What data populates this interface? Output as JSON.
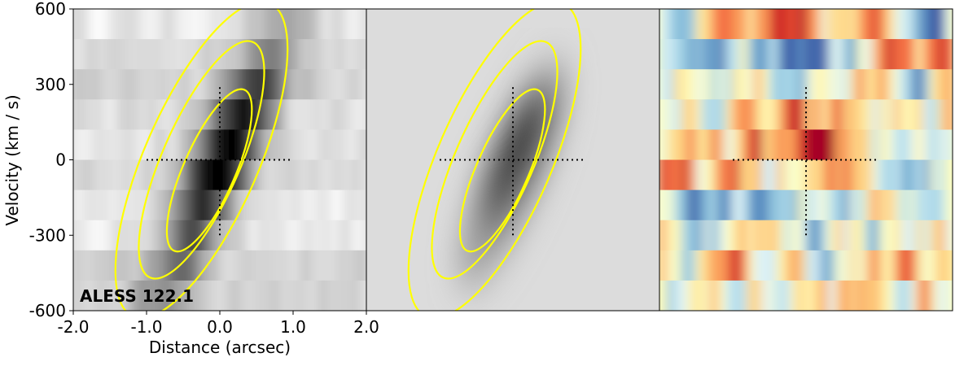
{
  "chart_data": [
    {
      "type": "heatmap",
      "panel": "data",
      "label": "ALESS 122.1",
      "xlabel": "Distance (arcsec)",
      "ylabel": "Velocity (km / s)",
      "xlim": [
        -2.0,
        2.0
      ],
      "ylim": [
        -600,
        600
      ],
      "x_ticks": [
        "-2.0",
        "-1.0",
        "0.0",
        "1.0",
        "2.0"
      ],
      "y_ticks": [
        "-600",
        "-300",
        "0",
        "300",
        "600"
      ],
      "colormap": "greys",
      "emission_ridge": [
        {
          "velocity": 100,
          "distance": 0.2
        },
        {
          "velocity": -500,
          "distance": -0.7
        }
      ],
      "contour_color": "#ffff00",
      "crosshair": {
        "x_range": [
          -1.0,
          1.0
        ],
        "y_range": [
          -300,
          300
        ]
      }
    },
    {
      "type": "heatmap",
      "panel": "model",
      "colormap": "greys",
      "contour_color": "#ffff00",
      "crosshair": {
        "x_range": [
          -1.0,
          1.0
        ],
        "y_range": [
          -300,
          300
        ]
      }
    },
    {
      "type": "heatmap",
      "panel": "residual",
      "colormap": "red-yellow-blue (diverging)",
      "crosshair": {
        "x_range": [
          -1.0,
          1.0
        ],
        "y_range": [
          -300,
          300
        ]
      }
    }
  ]
}
